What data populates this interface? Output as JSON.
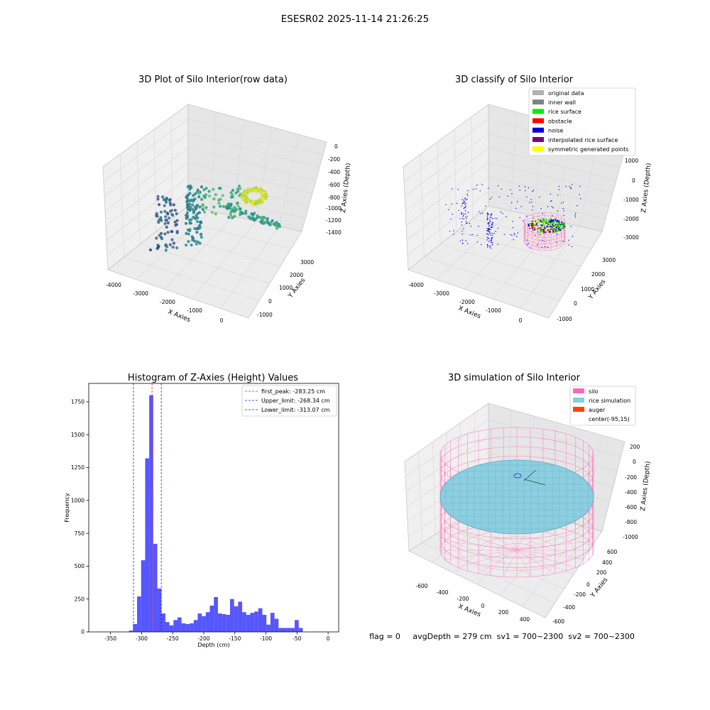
{
  "suptitle": "ESESR02 2025-11-14 21:26:25",
  "colors": {
    "pane": "#f2f2f2",
    "grid": "#d9d9d9",
    "hist_bar": "#4d4dff",
    "first_peak": "#ff2020",
    "limits": "#2020cc",
    "silo": "#ff69b4",
    "rice": "#87cedf",
    "auger": "#ff4500",
    "noise": "#0000dd",
    "rice_surface": "#00ee00",
    "obstacle": "#ff0000",
    "interp": "#800080",
    "symmetric": "#ffff00",
    "original": "#b0b0b0",
    "inner_wall": "#808080"
  },
  "panel1": {
    "title": "3D Plot of Silo Interior(row data)",
    "xlabel": "X Axies",
    "ylabel": "Y Axies",
    "zlabel": "Z Axies (Depth)",
    "xticks": [
      "-4000",
      "-3000",
      "-2000",
      "-1000",
      "0"
    ],
    "yticks": [
      "-1000",
      "0",
      "1000",
      "2000",
      "3000"
    ],
    "zticks": [
      "0",
      "-200",
      "-400",
      "-600",
      "-800",
      "-1000",
      "-1200",
      "-1400"
    ]
  },
  "panel2": {
    "title": "3D classify of Silo Interior",
    "xlabel": "X Axies",
    "ylabel": "Y Axies",
    "zlabel": "Z Axies (Depth)",
    "xticks": [
      "-4000",
      "-3000",
      "-2000",
      "-1000",
      "0"
    ],
    "yticks": [
      "-1000",
      "0",
      "1000",
      "2000",
      "3000"
    ],
    "zticks": [
      "1000",
      "0",
      "-1000",
      "-2000",
      "-3000"
    ],
    "legend": [
      {
        "label": "original data",
        "color": "#b0b0b0"
      },
      {
        "label": "inner wall",
        "color": "#808080"
      },
      {
        "label": "rice surface",
        "color": "#00ee00"
      },
      {
        "label": "obstacle",
        "color": "#ff0000"
      },
      {
        "label": "noise",
        "color": "#0000dd"
      },
      {
        "label": "interpolated rice surface",
        "color": "#800080"
      },
      {
        "label": "symmetric generated points",
        "color": "#ffff00"
      }
    ]
  },
  "panel3": {
    "title": "Histogram of Z-Axies (Height) Values",
    "xlabel": "Depth (cm)",
    "ylabel": "Frequency",
    "legend": [
      {
        "label": "first_peak: -283.25 cm",
        "color": "#ff2020"
      },
      {
        "label": "Upper_limit: -268.34 cm",
        "color": "#2020cc"
      },
      {
        "label": "Lower_limit: -313.07 cm",
        "color": "#2020cc"
      }
    ]
  },
  "panel4": {
    "title": "3D simulation of Silo Interior",
    "xlabel": "X Axies",
    "ylabel": "Y Axies",
    "zlabel": "Z Axies (Depth)",
    "xticks": [
      "-600",
      "-400",
      "-200",
      "0",
      "200",
      "400"
    ],
    "yticks": [
      "-600",
      "-400",
      "-200",
      "0",
      "200",
      "400",
      "600"
    ],
    "zticks": [
      "200",
      "0",
      "-200",
      "-400",
      "-600",
      "-800",
      "-1000"
    ],
    "legend": [
      {
        "label": "silo",
        "color": "#ff69b4"
      },
      {
        "label": "rice simulation",
        "color": "#87cedf"
      },
      {
        "label": "auger",
        "color": "#ff4500"
      },
      {
        "label": "center(-95,15)",
        "color": ""
      }
    ]
  },
  "footer": "flag = 0     avgDepth = 279 cm  sv1 = 700~2300  sv2 = 700~2300",
  "chart_data": {
    "type": "bar",
    "title": "Histogram of Z-Axies (Height) Values",
    "xlabel": "Depth (cm)",
    "ylabel": "Frequency",
    "xlim": [
      -385,
      17
    ],
    "ylim": [
      0,
      1890
    ],
    "xticks": [
      -350,
      -300,
      -250,
      -200,
      -150,
      -100,
      -50,
      0
    ],
    "yticks": [
      0,
      250,
      500,
      750,
      1000,
      1250,
      1500,
      1750
    ],
    "bin_width": 6.5,
    "bins": [
      {
        "x": -317,
        "y": 10
      },
      {
        "x": -310.5,
        "y": 60
      },
      {
        "x": -304,
        "y": 270
      },
      {
        "x": -297.5,
        "y": 545
      },
      {
        "x": -291,
        "y": 1320
      },
      {
        "x": -284.5,
        "y": 1800
      },
      {
        "x": -278,
        "y": 670
      },
      {
        "x": -271.5,
        "y": 330
      },
      {
        "x": -265,
        "y": 140
      },
      {
        "x": -258.5,
        "y": 75
      },
      {
        "x": -252,
        "y": 50
      },
      {
        "x": -245.5,
        "y": 90
      },
      {
        "x": -239,
        "y": 110
      },
      {
        "x": -232.5,
        "y": 65
      },
      {
        "x": -226,
        "y": 60
      },
      {
        "x": -219.5,
        "y": 65
      },
      {
        "x": -213,
        "y": 90
      },
      {
        "x": -206.5,
        "y": 140
      },
      {
        "x": -200,
        "y": 120
      },
      {
        "x": -193.5,
        "y": 150
      },
      {
        "x": -187,
        "y": 200
      },
      {
        "x": -180.5,
        "y": 265
      },
      {
        "x": -174,
        "y": 140
      },
      {
        "x": -167.5,
        "y": 135
      },
      {
        "x": -161,
        "y": 130
      },
      {
        "x": -154.5,
        "y": 250
      },
      {
        "x": -148,
        "y": 195
      },
      {
        "x": -141.5,
        "y": 230
      },
      {
        "x": -135,
        "y": 150
      },
      {
        "x": -128.5,
        "y": 130
      },
      {
        "x": -122,
        "y": 145
      },
      {
        "x": -115.5,
        "y": 155
      },
      {
        "x": -109,
        "y": 180
      },
      {
        "x": -102.5,
        "y": 130
      },
      {
        "x": -96,
        "y": 55
      },
      {
        "x": -89.5,
        "y": 145
      },
      {
        "x": -83,
        "y": 100
      },
      {
        "x": -76.5,
        "y": 30
      },
      {
        "x": -70,
        "y": 30
      },
      {
        "x": -63.5,
        "y": 30
      },
      {
        "x": -57,
        "y": 30
      },
      {
        "x": -50.5,
        "y": 90
      },
      {
        "x": -44,
        "y": 30
      }
    ],
    "vlines": [
      {
        "label": "first_peak: -283.25 cm",
        "x": -283.25,
        "style": "dashed",
        "color": "#ff2020"
      },
      {
        "label": "Upper_limit: -268.34 cm",
        "x": -268.34,
        "style": "dashed",
        "color": "#2020cc"
      },
      {
        "label": "Lower_limit: -313.07 cm",
        "x": -313.07,
        "style": "dashed",
        "color": "#2020cc"
      }
    ]
  }
}
